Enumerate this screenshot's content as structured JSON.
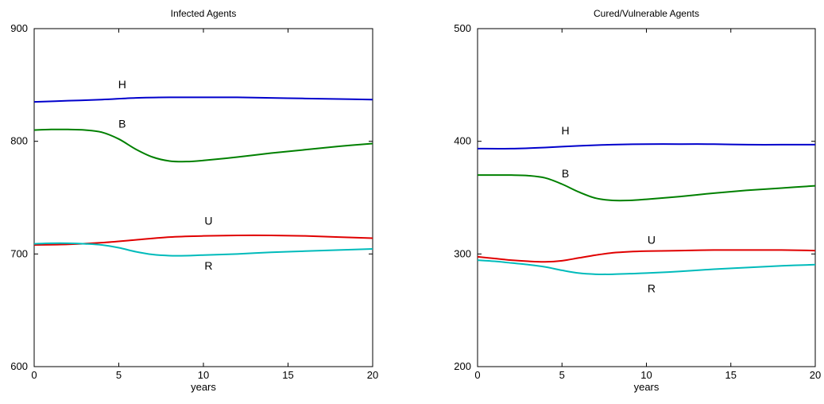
{
  "chart_data": [
    {
      "type": "line",
      "title": "Infected Agents",
      "xlabel": "years",
      "ylabel": "",
      "xlim": [
        0,
        20
      ],
      "ylim": [
        600,
        900
      ],
      "xticks": [
        0,
        5,
        10,
        15,
        20
      ],
      "yticks": [
        600,
        700,
        800,
        900
      ],
      "grid": false,
      "series": [
        {
          "name": "H",
          "color": "#0000cc",
          "x": [
            0,
            2,
            4,
            6,
            8,
            10,
            12,
            14,
            16,
            18,
            20
          ],
          "y": [
            835,
            836,
            837,
            838.5,
            839,
            839,
            839,
            838.5,
            838,
            837.5,
            837
          ],
          "label_at": [
            5.2,
            847
          ]
        },
        {
          "name": "B",
          "color": "#008000",
          "x": [
            0,
            1,
            2,
            3,
            4,
            5,
            6,
            7,
            8,
            9,
            10,
            12,
            14,
            16,
            18,
            20
          ],
          "y": [
            810,
            810.5,
            810.5,
            810,
            808,
            802,
            793,
            786,
            782.5,
            782,
            783,
            786,
            789.5,
            792.5,
            795.5,
            798
          ],
          "label_at": [
            5.2,
            812
          ]
        },
        {
          "name": "U",
          "color": "#e00000",
          "x": [
            0,
            2,
            4,
            6,
            8,
            10,
            12,
            14,
            16,
            18,
            20
          ],
          "y": [
            708,
            708.5,
            710,
            712.5,
            715,
            716,
            716.5,
            716.5,
            716,
            715,
            714
          ],
          "label_at": [
            10.3,
            726
          ]
        },
        {
          "name": "R",
          "color": "#00bbbb",
          "x": [
            0,
            1,
            2,
            3,
            4,
            5,
            6,
            7,
            8,
            9,
            10,
            12,
            14,
            16,
            18,
            20
          ],
          "y": [
            709,
            709.5,
            709.5,
            709,
            708,
            705.5,
            702,
            699.5,
            698.5,
            698.5,
            699,
            700,
            701.5,
            702.5,
            703.5,
            704.5
          ],
          "label_at": [
            10.3,
            686
          ]
        }
      ]
    },
    {
      "type": "line",
      "title": "Cured/Vulnerable Agents",
      "xlabel": "years",
      "ylabel": "",
      "xlim": [
        0,
        20
      ],
      "ylim": [
        200,
        500
      ],
      "xticks": [
        0,
        5,
        10,
        15,
        20
      ],
      "yticks": [
        200,
        300,
        400,
        500
      ],
      "grid": false,
      "series": [
        {
          "name": "H",
          "color": "#0000cc",
          "x": [
            0,
            2,
            4,
            6,
            8,
            10,
            12,
            14,
            16,
            18,
            20
          ],
          "y": [
            393.5,
            393.5,
            394.5,
            396,
            397,
            397.5,
            397.5,
            397.5,
            397,
            397,
            397
          ],
          "label_at": [
            5.2,
            406
          ]
        },
        {
          "name": "B",
          "color": "#008000",
          "x": [
            0,
            1,
            2,
            3,
            4,
            5,
            6,
            7,
            8,
            9,
            10,
            12,
            14,
            16,
            18,
            20
          ],
          "y": [
            370,
            370,
            370,
            369.5,
            367.5,
            362,
            355,
            349.5,
            347.5,
            347.5,
            348.5,
            351,
            354,
            356.5,
            358.5,
            360.5
          ],
          "label_at": [
            5.2,
            368
          ]
        },
        {
          "name": "U",
          "color": "#e00000",
          "x": [
            0,
            1,
            2,
            3,
            4,
            5,
            6,
            7,
            8,
            9,
            10,
            12,
            14,
            16,
            18,
            20
          ],
          "y": [
            297.5,
            296,
            294.5,
            293.5,
            293,
            294,
            296.5,
            299,
            301,
            302,
            302.5,
            303,
            303.5,
            303.5,
            303.5,
            303
          ],
          "label_at": [
            10.3,
            309
          ]
        },
        {
          "name": "R",
          "color": "#00bbbb",
          "x": [
            0,
            1,
            2,
            3,
            4,
            5,
            6,
            7,
            8,
            9,
            10,
            12,
            14,
            16,
            18,
            20
          ],
          "y": [
            294.5,
            293.5,
            292,
            290.5,
            288.5,
            285.5,
            283,
            282,
            282,
            282.5,
            283,
            284.5,
            286.5,
            288,
            289.5,
            290.5
          ],
          "label_at": [
            10.3,
            266
          ]
        }
      ]
    }
  ]
}
